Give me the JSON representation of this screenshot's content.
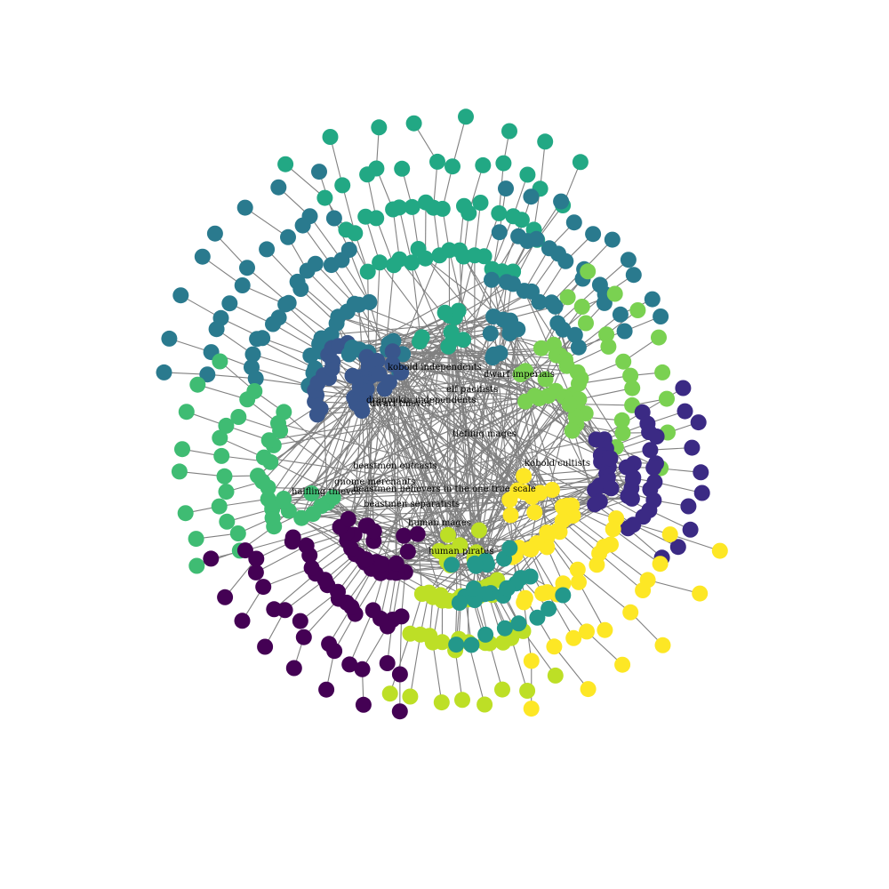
{
  "colors": {
    "palette": [
      "#440154",
      "#3b2a84",
      "#39568c",
      "#2a7a8e",
      "#23988b",
      "#22a884",
      "#3fbc73",
      "#7ad151",
      "#bddf26",
      "#fde725"
    ],
    "edge": "#808080",
    "background": "#ffffff"
  },
  "labels": {
    "kobold_independents": "kobold independents",
    "dwarf_imperials": "dwarf imperials",
    "elf_pacifists": "elf pacifists",
    "dragonkin_independents": "dragonkin independents",
    "dwarf_thieves": "dwarf thieves",
    "tiefling_mages": "tiefling mages",
    "kobold_cultists": "kobold cultists",
    "beastmen_outcasts": "beastmen outcasts",
    "gnome_merchants": "gnome merchants",
    "halfling_thieves": "halfling thieves",
    "beastmen_believers": "beastmen believers in the one true scale",
    "beastmen_separatists": "beastmen separatists",
    "human_mages": "human mages",
    "human_pirates": "human pirates"
  }
}
